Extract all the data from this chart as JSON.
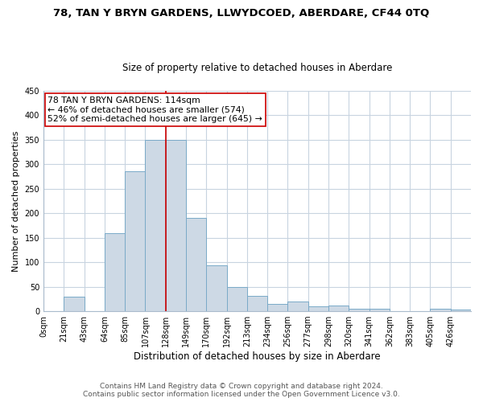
{
  "title": "78, TAN Y BRYN GARDENS, LLWYDCOED, ABERDARE, CF44 0TQ",
  "subtitle": "Size of property relative to detached houses in Aberdare",
  "xlabel": "Distribution of detached houses by size in Aberdare",
  "ylabel": "Number of detached properties",
  "bar_color": "#cdd9e5",
  "bar_edge_color": "#7aaac8",
  "bin_labels": [
    "0sqm",
    "21sqm",
    "43sqm",
    "64sqm",
    "85sqm",
    "107sqm",
    "128sqm",
    "149sqm",
    "170sqm",
    "192sqm",
    "213sqm",
    "234sqm",
    "256sqm",
    "277sqm",
    "298sqm",
    "320sqm",
    "341sqm",
    "362sqm",
    "383sqm",
    "405sqm",
    "426sqm"
  ],
  "bar_values": [
    0,
    30,
    0,
    160,
    285,
    350,
    350,
    190,
    93,
    50,
    32,
    15,
    20,
    10,
    12,
    5,
    5,
    0,
    0,
    5,
    3
  ],
  "ylim": [
    0,
    450
  ],
  "yticks": [
    0,
    50,
    100,
    150,
    200,
    250,
    300,
    350,
    400,
    450
  ],
  "property_line_label": "78 TAN Y BRYN GARDENS: 114sqm",
  "annotation_line1": "← 46% of detached houses are smaller (574)",
  "annotation_line2": "52% of semi-detached houses are larger (645) →",
  "annotation_box_color": "#ffffff",
  "annotation_box_edge": "#cc0000",
  "vline_color": "#cc0000",
  "vline_bin_index": 6,
  "footer_line1": "Contains HM Land Registry data © Crown copyright and database right 2024.",
  "footer_line2": "Contains public sector information licensed under the Open Government Licence v3.0.",
  "grid_color": "#c8d4e0",
  "title_fontsize": 9.5,
  "subtitle_fontsize": 8.5,
  "xlabel_fontsize": 8.5,
  "ylabel_fontsize": 8,
  "tick_fontsize": 7,
  "annotation_fontsize": 7.8,
  "footer_fontsize": 6.5
}
